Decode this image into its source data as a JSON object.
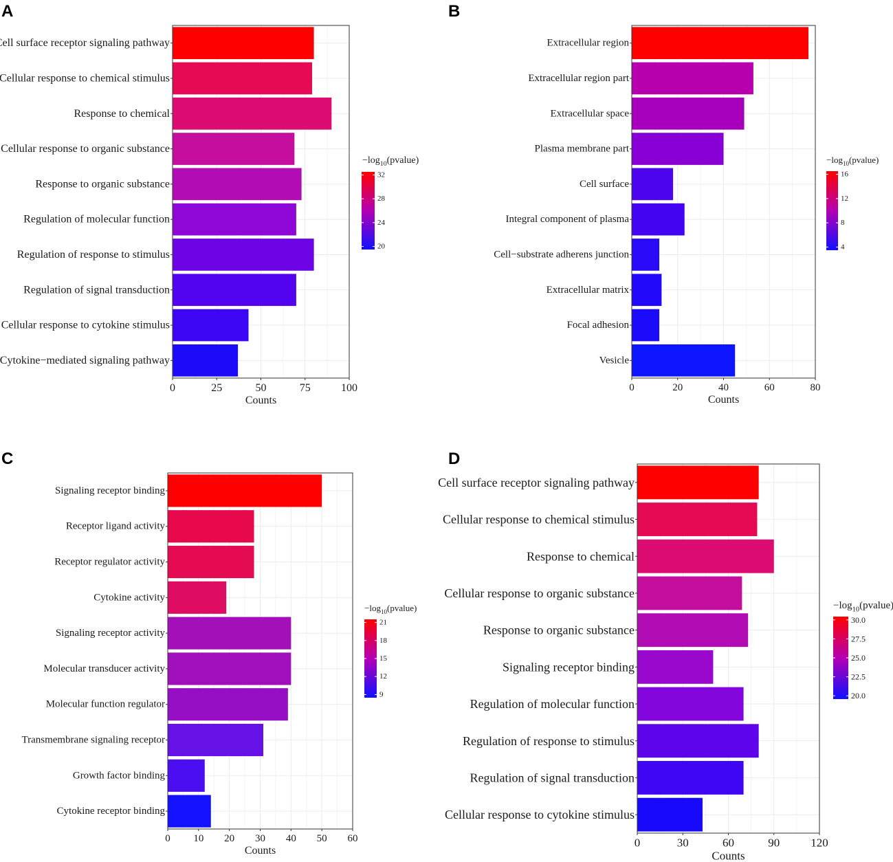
{
  "chart_data": [
    {
      "type": "bar",
      "panel": "A",
      "orientation": "horizontal",
      "categories": [
        "Cell surface receptor signaling pathway",
        "Cellular response to chemical stimulus",
        "Response to chemical",
        "Cellular response to organic substance",
        "Response to organic substance",
        "Regulation of molecular function",
        "Regulation of response to stimulus",
        "Regulation of signal transduction",
        "Cellular response to cytokine stimulus",
        "Cytokine−mediated signaling pathway"
      ],
      "values": [
        80,
        79,
        90,
        69,
        73,
        70,
        80,
        70,
        43,
        37
      ],
      "colors": [
        "#ff0000",
        "#e60a55",
        "#dc0c72",
        "#c50d9e",
        "#b20cb5",
        "#8f07d6",
        "#6d04e6",
        "#5203ef",
        "#3c06f5",
        "#1c0af9"
      ],
      "xlabel": "Counts",
      "xlim": [
        0,
        100
      ],
      "xticks": [
        "0",
        "25",
        "50",
        "75",
        "100"
      ],
      "legend": {
        "title_prefix": "−log",
        "title_sub": "10",
        "title_suffix": "(pvalue)",
        "ticks": [
          "32",
          "28",
          "24",
          "20"
        ]
      }
    },
    {
      "type": "bar",
      "panel": "B",
      "orientation": "horizontal",
      "categories": [
        "Extracellular region",
        "Extracellular region part",
        "Extracellular space",
        "Plasma membrane part",
        "Cell surface",
        "Integral component of plasma",
        "Cell−substrate adherens junction",
        "Extracellular matrix",
        "Focal adhesion",
        "Vesicle"
      ],
      "values": [
        77,
        53,
        49,
        40,
        18,
        23,
        12,
        13,
        12,
        45
      ],
      "colors": [
        "#ff0000",
        "#b800ae",
        "#a600bd",
        "#8900d6",
        "#4d04ef",
        "#4304f2",
        "#2a0af8",
        "#2209f9",
        "#1c0bfb",
        "#0d15ff"
      ],
      "xlabel": "Counts",
      "xlim": [
        0,
        80
      ],
      "xticks": [
        "0",
        "20",
        "40",
        "60",
        "80"
      ],
      "legend": {
        "title_prefix": "−log",
        "title_sub": "10",
        "title_suffix": "(pvalue)",
        "ticks": [
          "16",
          "12",
          "8",
          "4"
        ]
      }
    },
    {
      "type": "bar",
      "panel": "C",
      "orientation": "horizontal",
      "categories": [
        "Signaling receptor binding",
        "Receptor ligand activity",
        "Receptor regulator activity",
        "Cytokine activity",
        "Signaling receptor activity",
        "Molecular transducer activity",
        "Molecular function regulator",
        "Transmembrane signaling receptor",
        "Growth factor binding",
        "Cytokine receptor binding"
      ],
      "values": [
        50,
        28,
        28,
        19,
        40,
        40,
        39,
        31,
        12,
        14
      ],
      "colors": [
        "#ff0000",
        "#e8084c",
        "#e50b52",
        "#de0c63",
        "#a310b8",
        "#a00fbc",
        "#970fc5",
        "#6611e6",
        "#4a0ef0",
        "#1411ff"
      ],
      "xlabel": "Counts",
      "xlim": [
        0,
        60
      ],
      "xticks": [
        "0",
        "10",
        "20",
        "30",
        "40",
        "50",
        "60"
      ],
      "legend": {
        "title_prefix": "−log",
        "title_sub": "10",
        "title_suffix": "(pvalue)",
        "ticks": [
          "21",
          "18",
          "15",
          "12",
          "9"
        ]
      }
    },
    {
      "type": "bar",
      "panel": "D",
      "orientation": "horizontal",
      "categories": [
        "Cell surface receptor signaling pathway",
        "Cellular response to chemical stimulus",
        "Response to chemical",
        "Cellular response to organic substance",
        "Response to organic substance",
        "Signaling receptor binding",
        "Regulation of molecular function",
        "Regulation of response to stimulus",
        "Regulation of signal transduction",
        "Cellular response to cytokine stimulus"
      ],
      "values": [
        80,
        79,
        90,
        69,
        73,
        50,
        70,
        80,
        70,
        43
      ],
      "colors": [
        "#ff0000",
        "#e60a55",
        "#dc0c72",
        "#c50d9e",
        "#b20cb5",
        "#9a08cd",
        "#8307dc",
        "#5d04eb",
        "#3f06f4",
        "#1809fb"
      ],
      "xlabel": "Counts",
      "xlim": [
        0,
        120
      ],
      "xticks": [
        "0",
        "30",
        "60",
        "90",
        "120"
      ],
      "legend": {
        "title_prefix": "−log",
        "title_sub": "10",
        "title_suffix": "(pvalue)",
        "ticks": [
          "30.0",
          "27.5",
          "25.0",
          "22.5",
          "20.0"
        ]
      }
    }
  ]
}
